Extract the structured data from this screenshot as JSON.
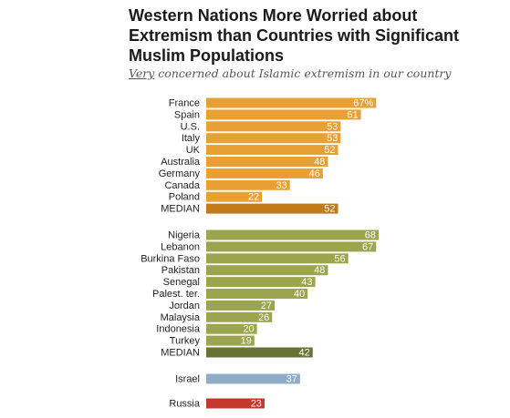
{
  "chart_data": {
    "type": "bar",
    "orientation": "horizontal",
    "title": "Western Nations More Worried about Extremism than Countries with Significant Muslim Populations",
    "subtitle_emph": "Very",
    "subtitle_rest": " concerned about Islamic extremism in our country",
    "xlim": [
      0,
      100
    ],
    "groups": [
      {
        "color": "#e8a035",
        "median_color": "#c07c1c",
        "categories": [
          "France",
          "Spain",
          "U.S.",
          "Italy",
          "UK",
          "Australia",
          "Germany",
          "Canada",
          "Poland",
          "MEDIAN"
        ],
        "values": [
          67,
          61,
          53,
          53,
          52,
          48,
          46,
          33,
          22,
          52
        ],
        "labels": [
          "67%",
          "61",
          "53",
          "53",
          "52",
          "48",
          "46",
          "33",
          "22",
          "52"
        ]
      },
      {
        "color": "#9aa54e",
        "median_color": "#6a7134",
        "categories": [
          "Nigeria",
          "Lebanon",
          "Burkina Faso",
          "Pakistan",
          "Senegal",
          "Palest. ter.",
          "Jordan",
          "Malaysia",
          "Indonesia",
          "Turkey",
          "MEDIAN"
        ],
        "values": [
          68,
          67,
          56,
          48,
          43,
          40,
          27,
          26,
          20,
          19,
          42
        ],
        "labels": [
          "68",
          "67",
          "56",
          "48",
          "43",
          "40",
          "27",
          "26",
          "20",
          "19",
          "42"
        ]
      },
      {
        "color": "#8fadc8",
        "median_color": "#8fadc8",
        "categories": [
          "Israel"
        ],
        "values": [
          37
        ],
        "labels": [
          "37"
        ]
      },
      {
        "color": "#c0392b",
        "median_color": "#c0392b",
        "categories": [
          "Russia"
        ],
        "values": [
          23
        ],
        "labels": [
          "23"
        ]
      }
    ]
  }
}
